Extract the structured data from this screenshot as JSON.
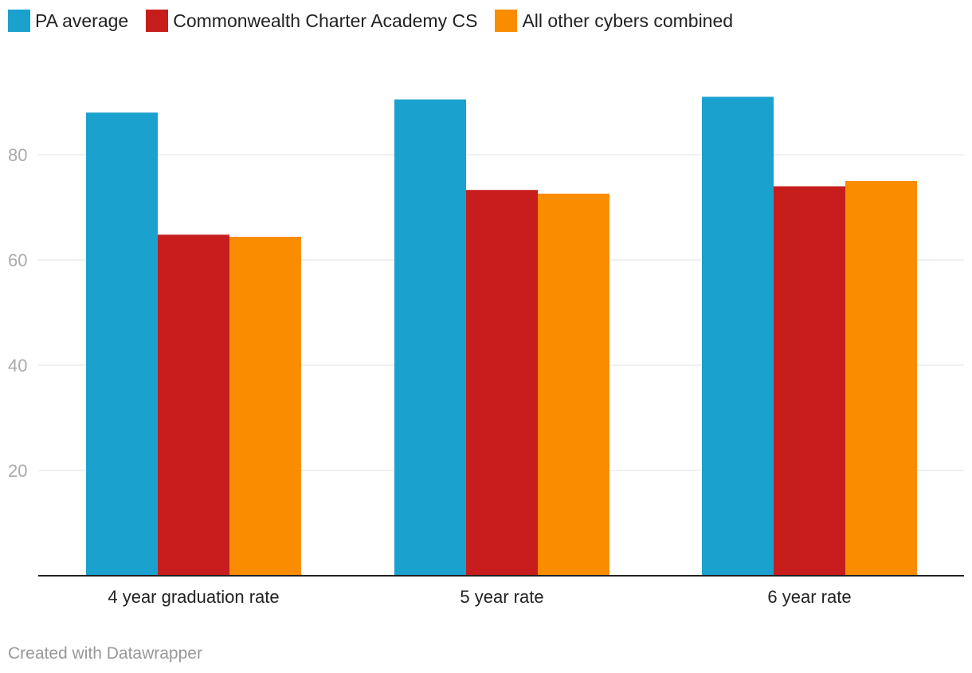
{
  "chart_data": {
    "type": "bar",
    "categories": [
      "4 year graduation rate",
      "5 year rate",
      "6 year rate"
    ],
    "series": [
      {
        "name": "PA average",
        "color": "#1aa1ce",
        "values": [
          88.0,
          90.5,
          91.0
        ]
      },
      {
        "name": "Commonwealth Charter Academy CS",
        "color": "#c71e1d",
        "values": [
          64.8,
          73.3,
          74.0
        ]
      },
      {
        "name": "All other cybers combined",
        "color": "#fa8c00",
        "values": [
          64.4,
          72.6,
          75.0
        ]
      }
    ],
    "yticks": [
      20,
      40,
      60,
      80
    ],
    "ylim": [
      0,
      100
    ],
    "grid": true,
    "legend_position": "top-left"
  },
  "footer": {
    "credit": "Created with Datawrapper"
  }
}
